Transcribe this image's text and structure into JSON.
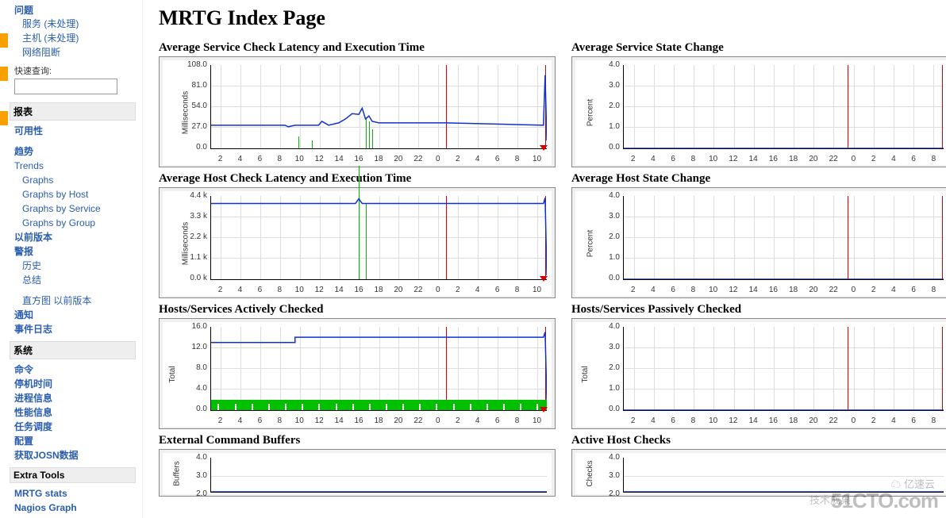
{
  "page": {
    "title": "MRTG Index Page"
  },
  "sidebar": {
    "problem_header": "问题",
    "links_top": [
      {
        "label": "服务  (未处理)"
      },
      {
        "label": "主机  (未处理)"
      },
      {
        "label": "网络阻断"
      }
    ],
    "quick_label": "快速查询:",
    "reports_header": "报表",
    "reports": {
      "avail": "可用性",
      "trend": "趋势",
      "trends_en": "Trends",
      "graphs": "Graphs",
      "graphs_host": "Graphs by Host",
      "graphs_service": "Graphs by Service",
      "graphs_group": "Graphs by Group",
      "prev_ver": "以前版本",
      "alerts": "警报",
      "history": "历史",
      "summary": "总结",
      "histogram_row": "直方图  以前版本",
      "notify": "通知",
      "eventlog": "事件日志"
    },
    "system_header": "系统",
    "system": {
      "cmd": "命令",
      "downtime": "停机时间",
      "procinfo": "进程信息",
      "perfinfo": "性能信息",
      "sched": "任务调度",
      "config": "配置",
      "getjson": "获取JOSN数据"
    },
    "extra_header": "Extra Tools",
    "extra": {
      "mrtg": "MRTG stats",
      "nagios": "Nagios Graph"
    }
  },
  "charts": [
    {
      "id": "svc-latency",
      "title": "Average Service Check Latency and Execution Time",
      "ylabel": "Milliseconds",
      "yticks": [
        "0.0",
        "27.0",
        "54.0",
        "81.0",
        "108.0"
      ],
      "ymax": 108,
      "xticks": [
        "2",
        "4",
        "6",
        "8",
        "10",
        "12",
        "14",
        "16",
        "18",
        "20",
        "22",
        "0",
        "2",
        "4",
        "6",
        "8",
        "10"
      ],
      "series_blue": [
        [
          0,
          30
        ],
        [
          22,
          30
        ],
        [
          23,
          28
        ],
        [
          25,
          30
        ],
        [
          32,
          30
        ],
        [
          33,
          35
        ],
        [
          35,
          30
        ],
        [
          38,
          33
        ],
        [
          40,
          38
        ],
        [
          42,
          45
        ],
        [
          44,
          44
        ],
        [
          45,
          52
        ],
        [
          46,
          38
        ],
        [
          47,
          42
        ],
        [
          48,
          35
        ],
        [
          50,
          33
        ],
        [
          70,
          33
        ],
        [
          99,
          30
        ],
        [
          99.5,
          95
        ],
        [
          100,
          10
        ]
      ],
      "series_green_spikes": [
        [
          26,
          0,
          15
        ],
        [
          30,
          0,
          10
        ],
        [
          46,
          0,
          40
        ],
        [
          47,
          0,
          35
        ],
        [
          48,
          0,
          25
        ]
      ],
      "red_x_positions": [
        70,
        99.5
      ],
      "red_tri_x": 99
    },
    {
      "id": "svc-state",
      "title": "Average Service State Change",
      "ylabel": "Percent",
      "yticks": [
        "0.0",
        "1.0",
        "2.0",
        "3.0",
        "4.0"
      ],
      "ymax": 4,
      "xticks": [
        "2",
        "4",
        "6",
        "8",
        "10",
        "12",
        "14",
        "16",
        "18",
        "20",
        "22",
        "0",
        "2",
        "4",
        "6",
        "8"
      ],
      "series_blue": [
        [
          0,
          0
        ],
        [
          100,
          0
        ]
      ],
      "red_x_positions": [
        70,
        99.5
      ]
    },
    {
      "id": "host-latency",
      "title": "Average Host Check Latency and Execution Time",
      "ylabel": "Milliseconds",
      "yticks": [
        "0.0 k",
        "1.1 k",
        "2.2 k",
        "3.3 k",
        "4.4 k"
      ],
      "ymax": 4.4,
      "xticks": [
        "2",
        "4",
        "6",
        "8",
        "10",
        "12",
        "14",
        "16",
        "18",
        "20",
        "22",
        "0",
        "2",
        "4",
        "6",
        "8",
        "10"
      ],
      "series_blue": [
        [
          0,
          4.0
        ],
        [
          43,
          4.0
        ],
        [
          44,
          4.25
        ],
        [
          45,
          4.0
        ],
        [
          99,
          4.0
        ],
        [
          99.5,
          4.3
        ],
        [
          100,
          0.2
        ]
      ],
      "series_green_spikes": [
        [
          44,
          0,
          6
        ],
        [
          46,
          0,
          4
        ]
      ],
      "red_x_positions": [
        70,
        99.5
      ],
      "red_tri_x": 99
    },
    {
      "id": "host-state",
      "title": "Average Host State Change",
      "ylabel": "Percent",
      "yticks": [
        "0.0",
        "1.0",
        "2.0",
        "3.0",
        "4.0"
      ],
      "ymax": 4,
      "xticks": [
        "2",
        "4",
        "6",
        "8",
        "10",
        "12",
        "14",
        "16",
        "18",
        "20",
        "22",
        "0",
        "2",
        "4",
        "6",
        "8"
      ],
      "series_blue": [
        [
          0,
          0
        ],
        [
          100,
          0
        ]
      ],
      "red_x_positions": [
        70,
        99.5
      ]
    },
    {
      "id": "active-checked",
      "title": "Hosts/Services Actively Checked",
      "ylabel": "Total",
      "yticks": [
        "0.0",
        "4.0",
        "8.0",
        "12.0",
        "16.0"
      ],
      "ymax": 16,
      "xticks": [
        "2",
        "4",
        "6",
        "8",
        "10",
        "12",
        "14",
        "16",
        "18",
        "20",
        "22",
        "0",
        "2",
        "4",
        "6",
        "8",
        "10"
      ],
      "series_blue": [
        [
          0,
          13
        ],
        [
          25,
          13
        ],
        [
          25,
          14
        ],
        [
          99,
          14
        ],
        [
          99.5,
          15
        ],
        [
          100,
          2
        ]
      ],
      "green_band": {
        "from": 0,
        "to": 100,
        "height": 2
      },
      "red_x_positions": [
        70,
        99.5
      ],
      "red_tri_x": 99
    },
    {
      "id": "passive-checked",
      "title": "Hosts/Services Passively Checked",
      "ylabel": "Total",
      "yticks": [
        "0.0",
        "1.0",
        "2.0",
        "3.0",
        "4.0"
      ],
      "ymax": 4,
      "xticks": [
        "2",
        "4",
        "6",
        "8",
        "10",
        "12",
        "14",
        "16",
        "18",
        "20",
        "22",
        "0",
        "2",
        "4",
        "6",
        "8"
      ],
      "series_blue": [
        [
          0,
          0
        ],
        [
          100,
          0
        ]
      ],
      "red_x_positions": [
        70,
        99.5
      ]
    },
    {
      "id": "ext-cmd-buf",
      "title": "External Command Buffers",
      "ylabel": "Buffers",
      "yticks": [
        "2.0",
        "3.0",
        "4.0"
      ],
      "ymax": 4,
      "xticks": [],
      "series_blue": [
        [
          0,
          0
        ],
        [
          100,
          0
        ]
      ],
      "short": true
    },
    {
      "id": "active-host-checks",
      "title": "Active Host Checks",
      "ylabel": "Checks",
      "yticks": [
        "2.0",
        "3.0",
        "4.0"
      ],
      "ymax": 4,
      "xticks": [],
      "series_blue": [
        [
          0,
          0
        ],
        [
          100,
          0
        ]
      ],
      "short": true
    }
  ],
  "watermark": {
    "main": "51CTO.com",
    "sub": "技术成果",
    "cloud": "☁ 亿速云"
  },
  "colors": {
    "link": "#2a5db0",
    "grid": "#dddddd",
    "blue_line": "#1030d0",
    "green_fill": "#00c000",
    "red": "#d00000",
    "box_bg": "#f0f0f0",
    "box_border": "#888888"
  }
}
